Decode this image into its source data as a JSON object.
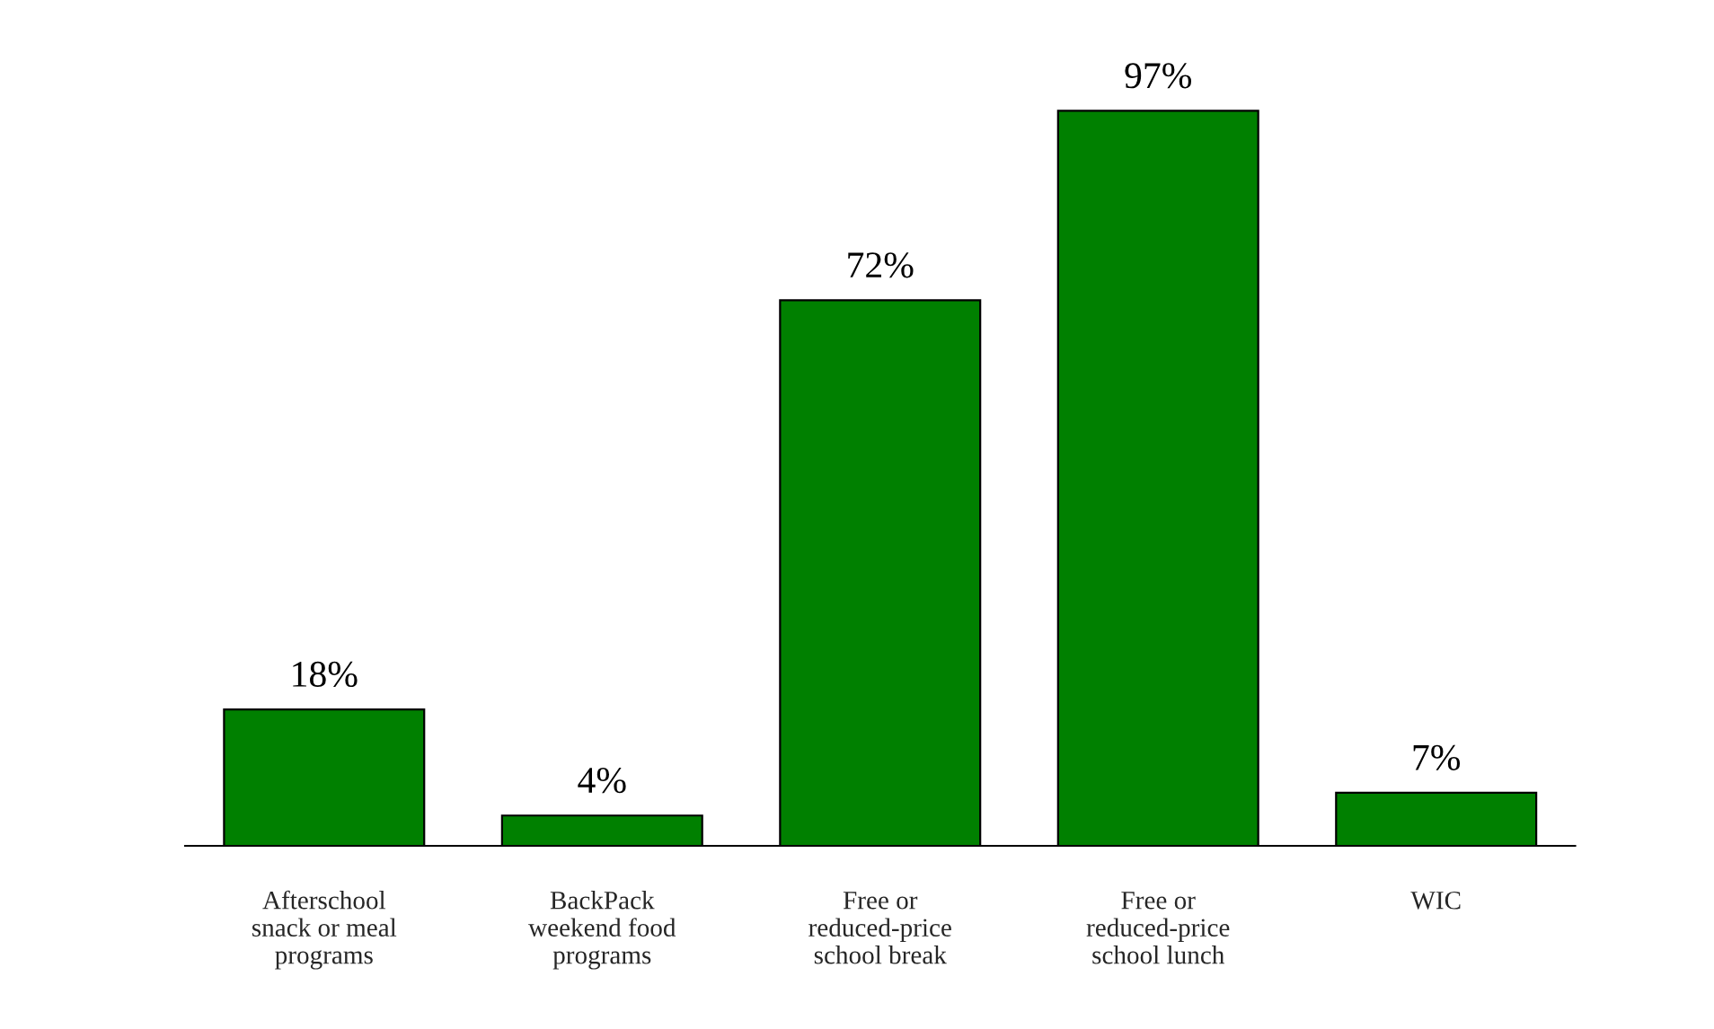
{
  "chart_data": {
    "type": "bar",
    "categories": [
      "Afterschool\nsnack or meal\nprograms",
      "BackPack\nweekend food\nprograms",
      "Free or\nreduced-price\nschool break",
      "Free or\nreduced-price\nschool lunch",
      "WIC"
    ],
    "values": [
      18,
      4,
      72,
      97,
      7
    ],
    "color": "#008000",
    "value_labels": [
      "18%",
      "4%",
      "72%",
      "97%",
      "7%"
    ],
    "grid": false,
    "legend": false
  }
}
